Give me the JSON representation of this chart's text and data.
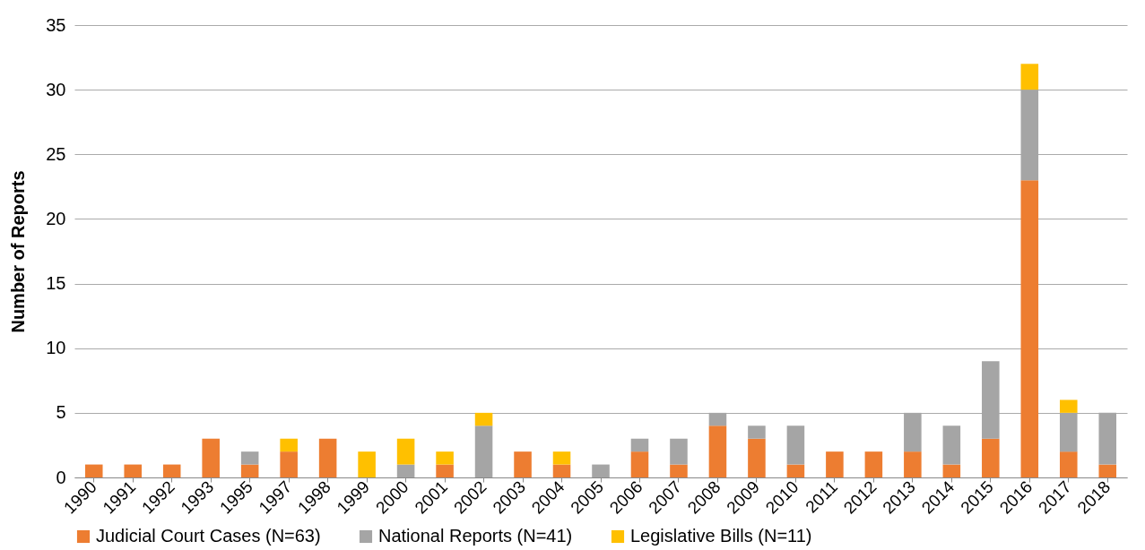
{
  "chart_data": {
    "type": "bar",
    "stacked": true,
    "ylabel": "Number of Reports",
    "categories": [
      "1990",
      "1991",
      "1992",
      "1993",
      "1995",
      "1997",
      "1998",
      "1999",
      "2000",
      "2001",
      "2002",
      "2003",
      "2004",
      "2005",
      "2006",
      "2007",
      "2008",
      "2009",
      "2010",
      "2011",
      "2012",
      "2013",
      "2014",
      "2015",
      "2016",
      "2017",
      "2018"
    ],
    "series": [
      {
        "name": "Judicial Court Cases (N=63)",
        "color": "#ed7d31",
        "values": [
          1,
          1,
          1,
          3,
          1,
          2,
          3,
          0,
          0,
          1,
          0,
          2,
          1,
          0,
          2,
          1,
          4,
          3,
          1,
          2,
          2,
          2,
          1,
          3,
          23,
          2,
          1
        ]
      },
      {
        "name": "National Reports (N=41)",
        "color": "#a5a5a5",
        "values": [
          0,
          0,
          0,
          0,
          1,
          0,
          0,
          0,
          1,
          0,
          4,
          0,
          0,
          1,
          1,
          2,
          1,
          1,
          3,
          0,
          0,
          3,
          3,
          6,
          7,
          3,
          4
        ]
      },
      {
        "name": "Legislative Bills (N=11)",
        "color": "#ffc000",
        "values": [
          0,
          0,
          0,
          0,
          0,
          1,
          0,
          2,
          2,
          1,
          1,
          0,
          1,
          0,
          0,
          0,
          0,
          0,
          0,
          0,
          0,
          0,
          0,
          0,
          2,
          1,
          0
        ]
      }
    ],
    "ylim": [
      0,
      35
    ],
    "yticks": [
      0,
      5,
      10,
      15,
      20,
      25,
      30,
      35
    ],
    "grid": "y",
    "legend": "bottom"
  }
}
